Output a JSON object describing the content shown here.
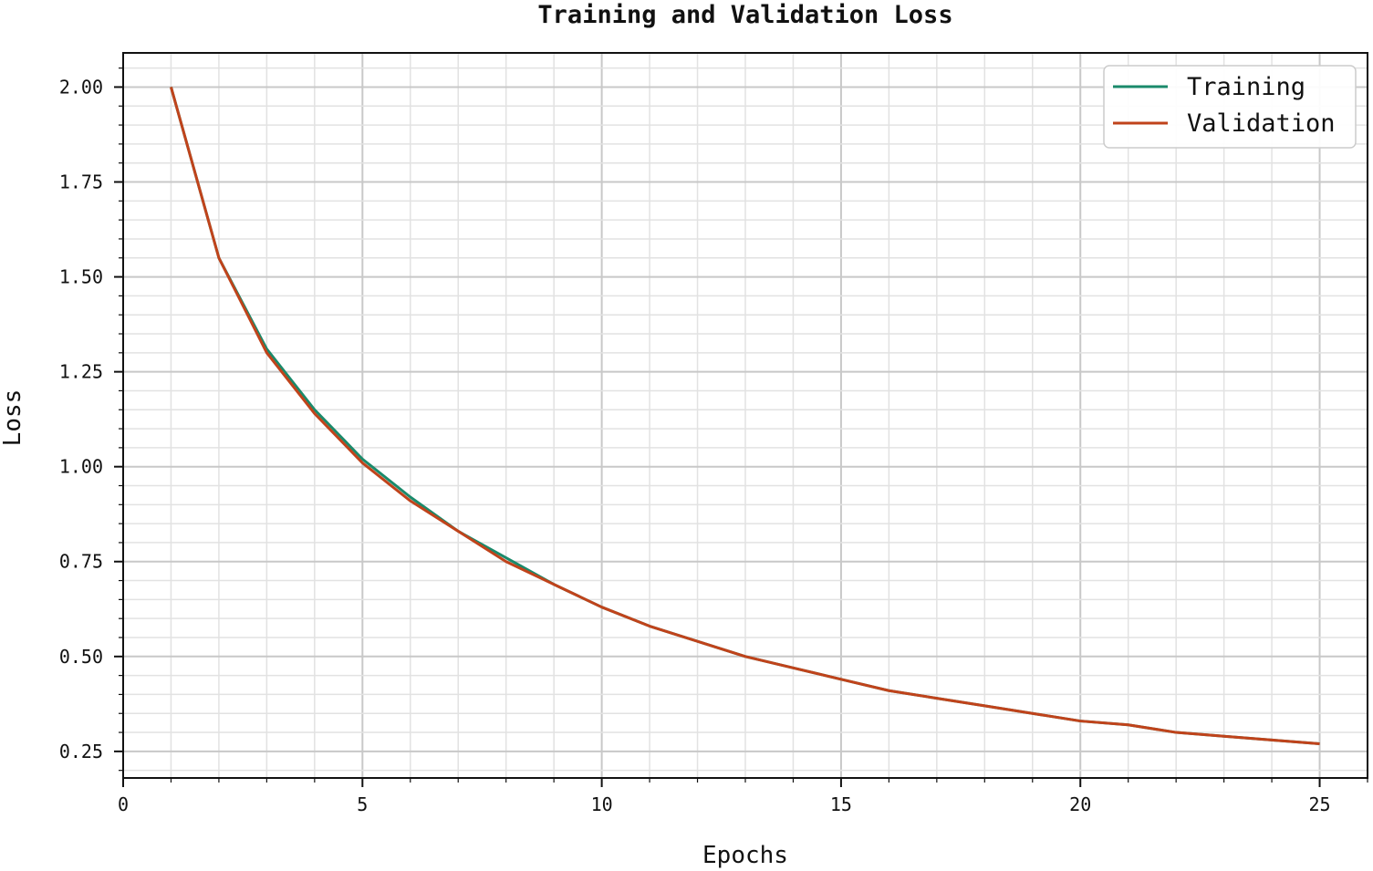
{
  "chart_data": {
    "type": "line",
    "title": "Training and Validation Loss",
    "xlabel": "Epochs",
    "ylabel": "Loss",
    "xlim": [
      0,
      26
    ],
    "ylim": [
      0.18,
      2.09
    ],
    "xticks": [
      0,
      5,
      10,
      15,
      20,
      25
    ],
    "yticks": [
      0.25,
      0.5,
      0.75,
      1.0,
      1.25,
      1.5,
      1.75,
      2.0
    ],
    "xtick_labels": [
      "0",
      "5",
      "10",
      "15",
      "20",
      "25"
    ],
    "ytick_labels": [
      "0.25",
      "0.50",
      "0.75",
      "1.00",
      "1.25",
      "1.50",
      "1.75",
      "2.00"
    ],
    "grid": true,
    "legend_position": "top-right",
    "x": [
      1,
      2,
      3,
      4,
      5,
      6,
      7,
      8,
      9,
      10,
      11,
      12,
      13,
      14,
      15,
      16,
      17,
      18,
      19,
      20,
      21,
      22,
      23,
      24,
      25
    ],
    "series": [
      {
        "name": "Training",
        "color": "#1a8a6b",
        "values": [
          2.0,
          1.55,
          1.31,
          1.15,
          1.02,
          0.92,
          0.83,
          0.76,
          0.69,
          0.63,
          0.58,
          0.54,
          0.5,
          0.47,
          0.44,
          0.41,
          0.39,
          0.37,
          0.35,
          0.33,
          0.32,
          0.3,
          0.29,
          0.28,
          0.27
        ]
      },
      {
        "name": "Validation",
        "color": "#c0431b",
        "values": [
          2.0,
          1.55,
          1.3,
          1.14,
          1.01,
          0.91,
          0.83,
          0.75,
          0.69,
          0.63,
          0.58,
          0.54,
          0.5,
          0.47,
          0.44,
          0.41,
          0.39,
          0.37,
          0.35,
          0.33,
          0.32,
          0.3,
          0.29,
          0.28,
          0.27
        ]
      }
    ]
  }
}
